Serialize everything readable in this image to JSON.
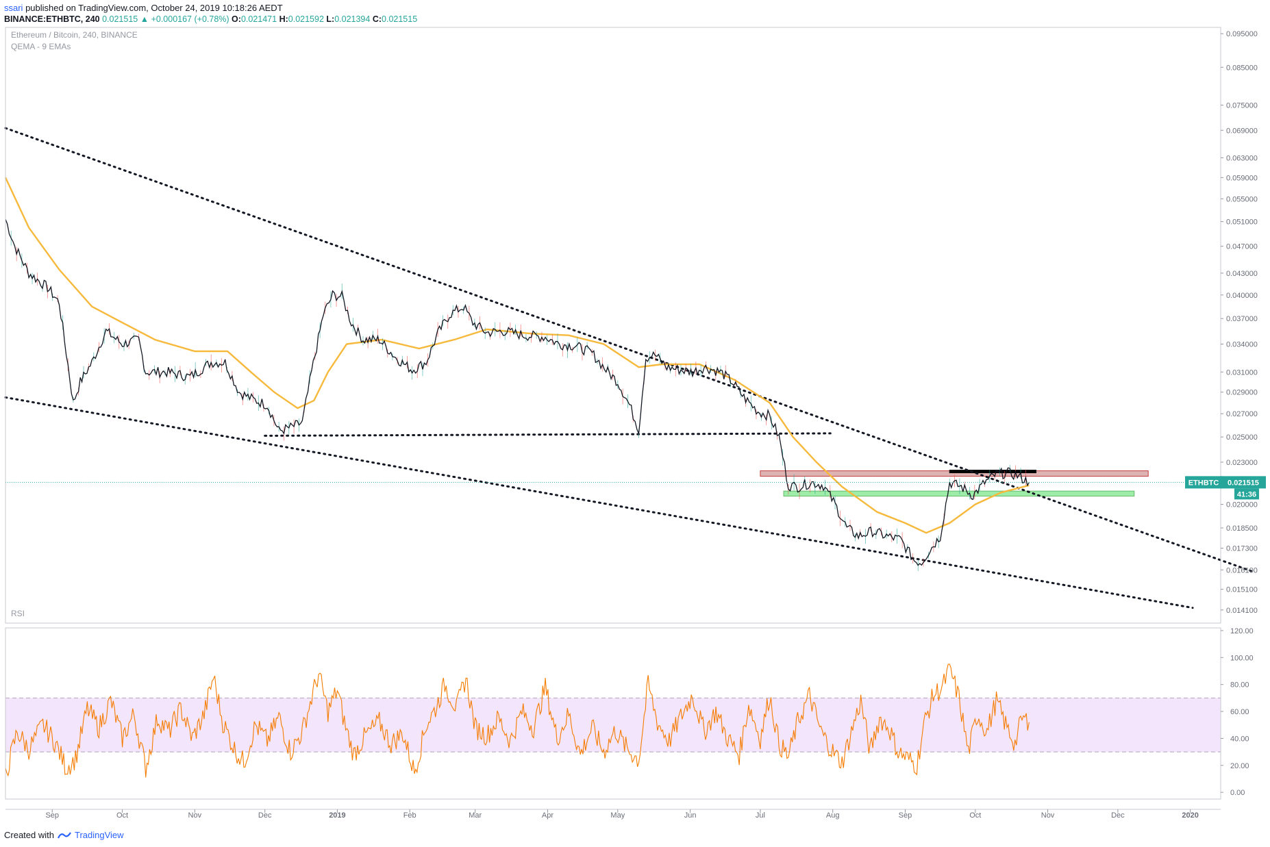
{
  "header": {
    "publisher": "ssari",
    "published_text": "published on TradingView.com, October 24, 2019 10:18:26 AEDT",
    "symbol": "BINANCE:ETHBTC, 240",
    "last": "0.021515",
    "change": "+0.000167 (+0.78%)",
    "open_label": "O:",
    "open": "0.021471",
    "high_label": "H:",
    "high": "0.021592",
    "low_label": "L:",
    "low": "0.021394",
    "close_label": "C:",
    "close": "0.021515"
  },
  "legend": {
    "title": "Ethereum / Bitcoin, 240, BINANCE",
    "indicator": "QEMA - 9 EMAs",
    "rsi": "RSI"
  },
  "footer": {
    "created_with": "Created with",
    "brand": "TradingView"
  },
  "colors": {
    "ema": "#f6b93b",
    "price": "#131722",
    "rsi_line": "#f57c00",
    "rsi_band": "#f3e5fb",
    "support_zone": "#8ce99a",
    "resistance_zone": "#d9a6a6",
    "price_tag": "#26a69a"
  },
  "chart_data": [
    {
      "type": "line",
      "panel": "price",
      "y_scale": "log",
      "ylim": [
        0.0135,
        0.097
      ],
      "y_ticks": [
        "0.095000",
        "0.085000",
        "0.075000",
        "0.069000",
        "0.063000",
        "0.059000",
        "0.055000",
        "0.051000",
        "0.047000",
        "0.043000",
        "0.040000",
        "0.037000",
        "0.034000",
        "0.031000",
        "0.029000",
        "0.027000",
        "0.025000",
        "0.023000",
        "0.020000",
        "0.018500",
        "0.017300",
        "0.016100",
        "0.015100",
        "0.014100"
      ],
      "x_ticks": [
        "Sep",
        "Oct",
        "Nov",
        "Dec",
        "2019",
        "Feb",
        "Mar",
        "Apr",
        "May",
        "Jun",
        "Jul",
        "Aug",
        "Sep",
        "Oct",
        "Nov",
        "Dec",
        "2020"
      ],
      "x_range": [
        "2018-08-12",
        "2020-01-14"
      ],
      "series": [
        {
          "kind": "price",
          "points": [
            [
              "2018-08-12",
              0.0514
            ],
            [
              "2018-08-16",
              0.047
            ],
            [
              "2018-08-22",
              0.043
            ],
            [
              "2018-08-30",
              0.041
            ],
            [
              "2018-09-04",
              0.039
            ],
            [
              "2018-09-10",
              0.028
            ],
            [
              "2018-09-13",
              0.03
            ],
            [
              "2018-09-18",
              0.032
            ],
            [
              "2018-09-24",
              0.0355
            ],
            [
              "2018-10-01",
              0.034
            ],
            [
              "2018-10-08",
              0.0345
            ],
            [
              "2018-10-11",
              0.031
            ],
            [
              "2018-10-20",
              0.031
            ],
            [
              "2018-10-30",
              0.0305
            ],
            [
              "2018-11-08",
              0.032
            ],
            [
              "2018-11-14",
              0.032
            ],
            [
              "2018-11-20",
              0.029
            ],
            [
              "2018-11-26",
              0.0283
            ],
            [
              "2018-12-02",
              0.0278
            ],
            [
              "2018-12-07",
              0.0255
            ],
            [
              "2018-12-12",
              0.0258
            ],
            [
              "2018-12-17",
              0.0262
            ],
            [
              "2018-12-21",
              0.031
            ],
            [
              "2018-12-26",
              0.0375
            ],
            [
              "2018-12-30",
              0.04
            ],
            [
              "2019-01-03",
              0.0398
            ],
            [
              "2019-01-07",
              0.0365
            ],
            [
              "2019-01-12",
              0.0345
            ],
            [
              "2019-01-19",
              0.0345
            ],
            [
              "2019-01-26",
              0.0325
            ],
            [
              "2019-02-02",
              0.0312
            ],
            [
              "2019-02-08",
              0.032
            ],
            [
              "2019-02-13",
              0.0352
            ],
            [
              "2019-02-18",
              0.0375
            ],
            [
              "2019-02-24",
              0.0385
            ],
            [
              "2019-02-28",
              0.0365
            ],
            [
              "2019-03-06",
              0.0353
            ],
            [
              "2019-03-13",
              0.0355
            ],
            [
              "2019-03-22",
              0.035
            ],
            [
              "2019-03-31",
              0.0348
            ],
            [
              "2019-04-06",
              0.034
            ],
            [
              "2019-04-13",
              0.0338
            ],
            [
              "2019-04-20",
              0.033
            ],
            [
              "2019-04-26",
              0.0312
            ],
            [
              "2019-05-01",
              0.03
            ],
            [
              "2019-05-06",
              0.0278
            ],
            [
              "2019-05-10",
              0.0256
            ],
            [
              "2019-05-13",
              0.0325
            ],
            [
              "2019-05-17",
              0.0328
            ],
            [
              "2019-05-22",
              0.0315
            ],
            [
              "2019-05-28",
              0.0312
            ],
            [
              "2019-06-02",
              0.031
            ],
            [
              "2019-06-07",
              0.0315
            ],
            [
              "2019-06-14",
              0.031
            ],
            [
              "2019-06-19",
              0.03
            ],
            [
              "2019-06-24",
              0.0285
            ],
            [
              "2019-06-30",
              0.0272
            ],
            [
              "2019-07-05",
              0.0268
            ],
            [
              "2019-07-09",
              0.025
            ],
            [
              "2019-07-13",
              0.0213
            ],
            [
              "2019-07-17",
              0.0212
            ],
            [
              "2019-07-23",
              0.0215
            ],
            [
              "2019-07-28",
              0.0213
            ],
            [
              "2019-08-02",
              0.02
            ],
            [
              "2019-08-07",
              0.0185
            ],
            [
              "2019-08-12",
              0.018
            ],
            [
              "2019-08-18",
              0.0183
            ],
            [
              "2019-08-24",
              0.018
            ],
            [
              "2019-08-30",
              0.0178
            ],
            [
              "2019-09-05",
              0.0166
            ],
            [
              "2019-09-08",
              0.0165
            ],
            [
              "2019-09-11",
              0.0171
            ],
            [
              "2019-09-16",
              0.018
            ],
            [
              "2019-09-20",
              0.0215
            ],
            [
              "2019-09-25",
              0.0212
            ],
            [
              "2019-09-30",
              0.0206
            ],
            [
              "2019-10-05",
              0.0215
            ],
            [
              "2019-10-10",
              0.0221
            ],
            [
              "2019-10-15",
              0.0222
            ],
            [
              "2019-10-19",
              0.022
            ],
            [
              "2019-10-24",
              0.0215
            ]
          ]
        },
        {
          "kind": "ema",
          "name": "QEMA - 9 EMAs",
          "points": [
            [
              "2018-08-12",
              0.059
            ],
            [
              "2018-08-22",
              0.05
            ],
            [
              "2018-09-04",
              0.0435
            ],
            [
              "2018-09-18",
              0.0385
            ],
            [
              "2018-10-01",
              0.0365
            ],
            [
              "2018-10-15",
              0.0345
            ],
            [
              "2018-11-01",
              0.0332
            ],
            [
              "2018-11-15",
              0.0332
            ],
            [
              "2018-11-25",
              0.031
            ],
            [
              "2018-12-05",
              0.029
            ],
            [
              "2018-12-15",
              0.0275
            ],
            [
              "2018-12-22",
              0.0282
            ],
            [
              "2018-12-28",
              0.031
            ],
            [
              "2019-01-05",
              0.034
            ],
            [
              "2019-01-20",
              0.0345
            ],
            [
              "2019-02-05",
              0.0335
            ],
            [
              "2019-02-20",
              0.0345
            ],
            [
              "2019-03-06",
              0.0357
            ],
            [
              "2019-03-25",
              0.0352
            ],
            [
              "2019-04-10",
              0.035
            ],
            [
              "2019-04-25",
              0.034
            ],
            [
              "2019-05-10",
              0.0315
            ],
            [
              "2019-05-20",
              0.0318
            ],
            [
              "2019-06-05",
              0.0318
            ],
            [
              "2019-06-20",
              0.0302
            ],
            [
              "2019-07-05",
              0.028
            ],
            [
              "2019-07-15",
              0.025
            ],
            [
              "2019-07-25",
              0.023
            ],
            [
              "2019-08-05",
              0.0212
            ],
            [
              "2019-08-20",
              0.0195
            ],
            [
              "2019-09-01",
              0.0188
            ],
            [
              "2019-09-10",
              0.0182
            ],
            [
              "2019-09-20",
              0.0188
            ],
            [
              "2019-10-01",
              0.02
            ],
            [
              "2019-10-12",
              0.0208
            ],
            [
              "2019-10-24",
              0.0213
            ]
          ]
        }
      ],
      "trendlines": [
        {
          "name": "upper-channel-line",
          "from": [
            "2018-08-12",
            0.0695
          ],
          "to": [
            "2020-01-28",
            0.016
          ]
        },
        {
          "name": "lower-channel-line",
          "from": [
            "2018-08-12",
            0.0285
          ],
          "to": [
            "2020-01-02",
            0.0142
          ]
        },
        {
          "name": "horizontal-support-line",
          "from": [
            "2018-12-01",
            0.0251
          ],
          "to": [
            "2019-07-31",
            0.0253
          ]
        }
      ],
      "zones": [
        {
          "name": "resistance-zone",
          "from": "2019-07-01",
          "to": "2019-12-14",
          "ymin": 0.02195,
          "ymax": 0.02235
        },
        {
          "name": "support-zone",
          "from": "2019-07-11",
          "to": "2019-12-08",
          "ymin": 0.02055,
          "ymax": 0.0209
        },
        {
          "name": "top-bar",
          "from": "2019-09-20",
          "to": "2019-10-27",
          "ymin": 0.0222,
          "ymax": 0.0224
        }
      ],
      "last_price_label": {
        "symbol": "ETHBTC",
        "value": "0.021515",
        "countdown": "41:36"
      }
    },
    {
      "type": "line",
      "panel": "rsi",
      "title": "RSI",
      "ylim": [
        -5,
        122
      ],
      "y_ticks": [
        "120.00",
        "100.00",
        "80.00",
        "60.00",
        "40.00",
        "20.00",
        "0.00"
      ],
      "band": [
        30,
        70
      ],
      "points": [
        [
          "2018-08-12",
          12
        ],
        [
          "2018-08-17",
          45
        ],
        [
          "2018-08-22",
          32
        ],
        [
          "2018-08-28",
          50
        ],
        [
          "2018-09-02",
          38
        ],
        [
          "2018-09-07",
          18
        ],
        [
          "2018-09-11",
          25
        ],
        [
          "2018-09-16",
          62
        ],
        [
          "2018-09-21",
          48
        ],
        [
          "2018-09-26",
          68
        ],
        [
          "2018-10-01",
          40
        ],
        [
          "2018-10-06",
          58
        ],
        [
          "2018-10-11",
          18
        ],
        [
          "2018-10-16",
          55
        ],
        [
          "2018-10-21",
          45
        ],
        [
          "2018-10-26",
          62
        ],
        [
          "2018-10-31",
          40
        ],
        [
          "2018-11-05",
          58
        ],
        [
          "2018-11-09",
          86
        ],
        [
          "2018-11-13",
          52
        ],
        [
          "2018-11-18",
          32
        ],
        [
          "2018-11-22",
          22
        ],
        [
          "2018-11-27",
          50
        ],
        [
          "2018-12-02",
          38
        ],
        [
          "2018-12-07",
          56
        ],
        [
          "2018-12-12",
          30
        ],
        [
          "2018-12-17",
          45
        ],
        [
          "2018-12-21",
          70
        ],
        [
          "2018-12-24",
          88
        ],
        [
          "2018-12-28",
          60
        ],
        [
          "2019-01-01",
          76
        ],
        [
          "2019-01-04",
          52
        ],
        [
          "2019-01-08",
          28
        ],
        [
          "2019-01-13",
          42
        ],
        [
          "2019-01-19",
          52
        ],
        [
          "2019-01-24",
          36
        ],
        [
          "2019-01-29",
          44
        ],
        [
          "2019-02-03",
          15
        ],
        [
          "2019-02-08",
          50
        ],
        [
          "2019-02-12",
          62
        ],
        [
          "2019-02-16",
          80
        ],
        [
          "2019-02-21",
          62
        ],
        [
          "2019-02-25",
          85
        ],
        [
          "2019-03-01",
          48
        ],
        [
          "2019-03-06",
          42
        ],
        [
          "2019-03-11",
          55
        ],
        [
          "2019-03-16",
          38
        ],
        [
          "2019-03-21",
          60
        ],
        [
          "2019-03-26",
          48
        ],
        [
          "2019-03-31",
          78
        ],
        [
          "2019-04-05",
          40
        ],
        [
          "2019-04-10",
          58
        ],
        [
          "2019-04-15",
          28
        ],
        [
          "2019-04-20",
          48
        ],
        [
          "2019-04-25",
          30
        ],
        [
          "2019-04-30",
          46
        ],
        [
          "2019-05-05",
          32
        ],
        [
          "2019-05-10",
          24
        ],
        [
          "2019-05-14",
          80
        ],
        [
          "2019-05-18",
          52
        ],
        [
          "2019-05-23",
          38
        ],
        [
          "2019-05-28",
          56
        ],
        [
          "2019-06-02",
          72
        ],
        [
          "2019-06-07",
          45
        ],
        [
          "2019-06-12",
          60
        ],
        [
          "2019-06-17",
          40
        ],
        [
          "2019-06-22",
          28
        ],
        [
          "2019-06-26",
          65
        ],
        [
          "2019-07-01",
          40
        ],
        [
          "2019-07-05",
          72
        ],
        [
          "2019-07-09",
          36
        ],
        [
          "2019-07-13",
          26
        ],
        [
          "2019-07-17",
          52
        ],
        [
          "2019-07-22",
          72
        ],
        [
          "2019-07-27",
          45
        ],
        [
          "2019-08-01",
          30
        ],
        [
          "2019-08-05",
          22
        ],
        [
          "2019-08-09",
          45
        ],
        [
          "2019-08-13",
          68
        ],
        [
          "2019-08-17",
          30
        ],
        [
          "2019-08-21",
          55
        ],
        [
          "2019-08-25",
          48
        ],
        [
          "2019-08-29",
          30
        ],
        [
          "2019-09-02",
          25
        ],
        [
          "2019-09-06",
          20
        ],
        [
          "2019-09-09",
          50
        ],
        [
          "2019-09-13",
          72
        ],
        [
          "2019-09-17",
          78
        ],
        [
          "2019-09-20",
          92
        ],
        [
          "2019-09-24",
          70
        ],
        [
          "2019-09-28",
          30
        ],
        [
          "2019-10-02",
          58
        ],
        [
          "2019-10-06",
          45
        ],
        [
          "2019-10-10",
          68
        ],
        [
          "2019-10-14",
          50
        ],
        [
          "2019-10-18",
          36
        ],
        [
          "2019-10-21",
          55
        ],
        [
          "2019-10-24",
          52
        ]
      ]
    }
  ]
}
